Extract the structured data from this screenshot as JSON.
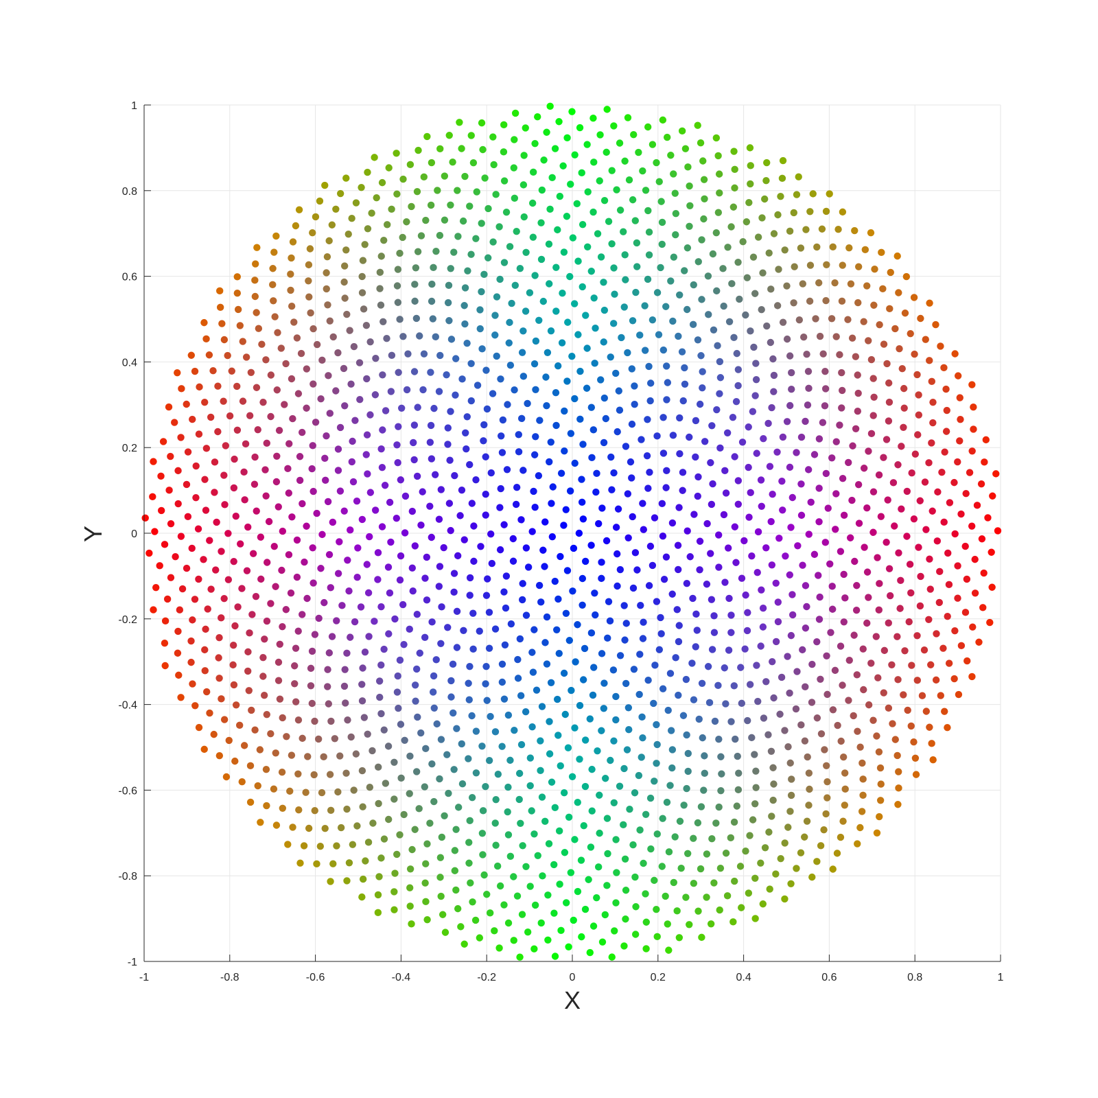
{
  "chart_data": {
    "type": "scatter",
    "title": "",
    "xlabel": "X",
    "ylabel": "Y",
    "xlim": [
      -1,
      1
    ],
    "ylim": [
      -1,
      1
    ],
    "grid": true,
    "x_ticks": [
      -1,
      -0.8,
      -0.6,
      -0.4,
      -0.2,
      0,
      0.2,
      0.4,
      0.6,
      0.8,
      1
    ],
    "y_ticks": [
      -1,
      -0.8,
      -0.6,
      -0.4,
      -0.2,
      0,
      0.2,
      0.4,
      0.6,
      0.8,
      1
    ],
    "x_tick_labels": [
      "-1",
      "-0.8",
      "-0.6",
      "-0.4",
      "-0.2",
      "0",
      "0.2",
      "0.4",
      "0.6",
      "0.8",
      "1"
    ],
    "y_tick_labels": [
      "-1",
      "-0.8",
      "-0.6",
      "-0.4",
      "-0.2",
      "0",
      "0.2",
      "0.4",
      "0.6",
      "0.8",
      "1"
    ],
    "point_generation": {
      "pattern": "sunflower (golden-angle spiral) filling the unit disk",
      "n_points": 2000,
      "radius": 1.0
    },
    "color_mapping": {
      "center": "#0000ff",
      "right_edge": "#ff0000",
      "left_edge": "#ff0000",
      "top_edge": "#00ff00",
      "bottom_edge": "#00ff00",
      "mid_radius_horizontal": "#9900cc",
      "mid_radius_vertical": "#00aaaa",
      "diagonal_edge": "#cc8800"
    }
  }
}
